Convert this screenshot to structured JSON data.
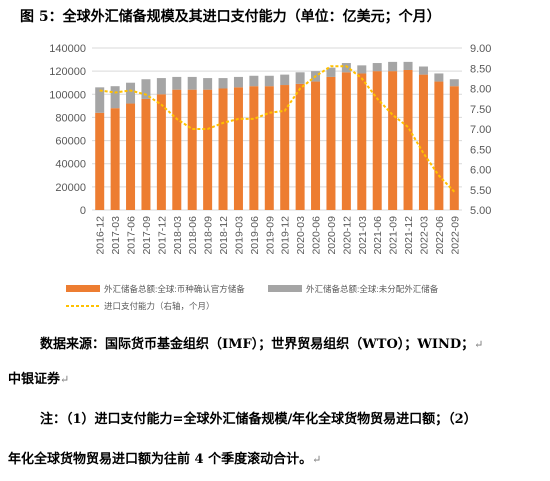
{
  "title": "图 5：全球外汇储备规模及其进口支付能力（单位：亿美元；个月）",
  "source_line1": "数据来源：国际货币基金组织（IMF）；世界贸易组织（WTO）；WIND；",
  "source_line2": "中银证券",
  "note_line1": "注：（1）进口支付能力=全球外汇储备规模/年化全球货物贸易进口额；（2）",
  "note_line2": "年化全球货物贸易进口额为往前 4 个季度滚动合计。",
  "colors": {
    "allocated": "#ED7D31",
    "unallocated": "#A5A5A5",
    "line": "#FFC000",
    "grid": "#D9D9D9",
    "axis_text": "#595959"
  },
  "chart_data": {
    "type": "bar",
    "stacked": true,
    "categories": [
      "2016-12",
      "2017-03",
      "2017-06",
      "2017-09",
      "2017-12",
      "2018-03",
      "2018-06",
      "2018-09",
      "2018-12",
      "2019-03",
      "2019-06",
      "2019-09",
      "2019-12",
      "2020-03",
      "2020-06",
      "2020-09",
      "2020-12",
      "2021-03",
      "2021-06",
      "2021-09",
      "2021-12",
      "2022-03",
      "2022-06",
      "2022-09"
    ],
    "series": [
      {
        "name": "外汇储备总额:全球:币种确认官方储备",
        "kind": "bar",
        "axis": "left",
        "values": [
          84000,
          88000,
          92000,
          96000,
          100000,
          104000,
          104000,
          104000,
          105000,
          106000,
          107000,
          107000,
          108000,
          109000,
          111000,
          115000,
          119000,
          118000,
          120000,
          120000,
          121000,
          117000,
          111000,
          107000
        ]
      },
      {
        "name": "外汇储备总额:全球:未分配外汇储备",
        "kind": "bar",
        "axis": "left",
        "values": [
          22000,
          19000,
          18000,
          17000,
          14000,
          11000,
          11000,
          10000,
          9000,
          9000,
          9000,
          9000,
          9000,
          10000,
          9000,
          8000,
          8000,
          7000,
          7000,
          8000,
          7000,
          7000,
          7000,
          6000
        ]
      },
      {
        "name": "进口支付能力（右轴，个月）",
        "kind": "line",
        "axis": "right",
        "values": [
          7.95,
          7.9,
          7.95,
          7.85,
          7.6,
          7.25,
          7.0,
          7.0,
          7.15,
          7.25,
          7.25,
          7.4,
          7.45,
          8.0,
          8.3,
          8.55,
          8.55,
          8.25,
          7.75,
          7.35,
          7.05,
          6.4,
          5.85,
          5.45
        ]
      }
    ],
    "y_left": {
      "min": 0,
      "max": 140000,
      "step": 20000
    },
    "y_right": {
      "min": 5.0,
      "max": 9.0,
      "step": 0.5
    },
    "grid": true,
    "legend_position": "bottom"
  }
}
